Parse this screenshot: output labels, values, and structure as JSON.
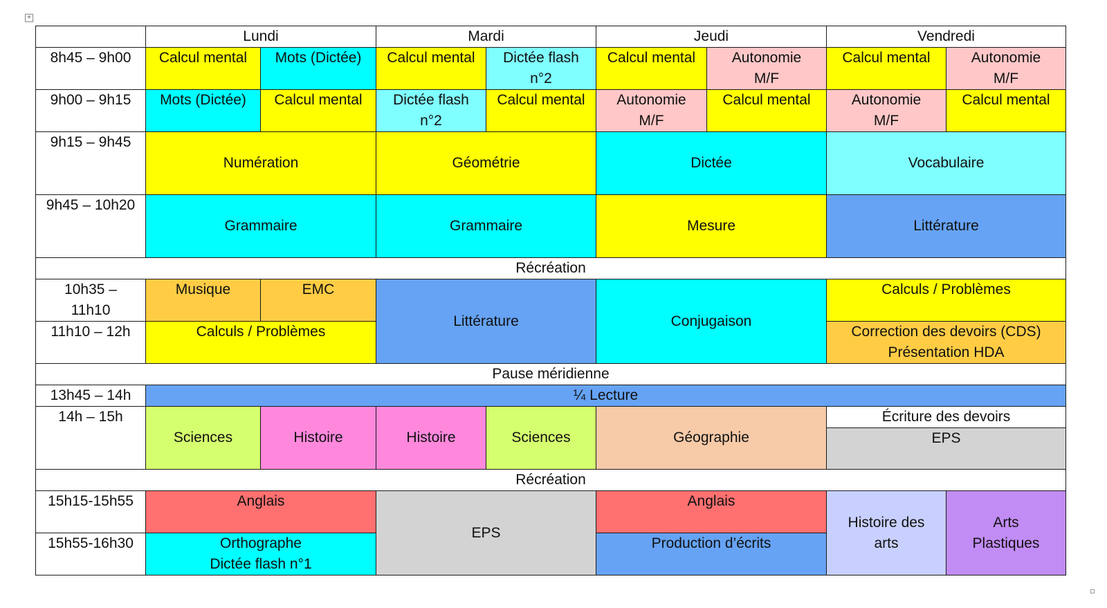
{
  "days": [
    "Lundi",
    "Mardi",
    "Jeudi",
    "Vendredi"
  ],
  "times": {
    "t1": "8h45 – 9h00",
    "t2": "9h00 – 9h15",
    "t3": "9h15 – 9h45",
    "t4": "9h45 – 10h20",
    "t5": "10h35 –\n11h10",
    "t6": "11h10 – 12h",
    "t7": "13h45 – 14h",
    "t8": "14h – 15h",
    "t9": "15h15-15h55",
    "t10": "15h55-16h30"
  },
  "breaks": {
    "recreation1": "Récréation",
    "lunch": "Pause méridienne",
    "recreation2": "Récréation"
  },
  "subjects": {
    "calcul_mental": "Calcul mental",
    "mots_dictee": "Mots (Dictée)",
    "dictee_flash_2": "Dictée flash\nn°2",
    "autonomie": "Autonomie\nM/F",
    "numeration": "Numération",
    "geometrie": "Géométrie",
    "dictee": "Dictée",
    "vocabulaire": "Vocabulaire",
    "grammaire": "Grammaire",
    "mesure": "Mesure",
    "litterature": "Littérature",
    "musique": "Musique",
    "emc": "EMC",
    "conjugaison": "Conjugaison",
    "calculs_problemes": "Calculs / Problèmes",
    "correction_devoirs": "Correction des devoirs (CDS)\nPrésentation HDA",
    "lecture": "¼ Lecture",
    "sciences": "Sciences",
    "histoire": "Histoire",
    "geographie": "Géographie",
    "ecriture_devoirs": "Écriture des devoirs",
    "eps": "EPS",
    "anglais": "Anglais",
    "orthographe": "Orthographe\nDictée flash n°1",
    "production_ecrits": "Production d’écrits",
    "histoire_arts": "Histoire des\narts",
    "arts_plastiques": "Arts\nPlastiques"
  },
  "colors": {
    "yellow": "#ffff00",
    "cyan": "#00ffff",
    "light_cyan": "#7fffff",
    "pink": "#ffc7c7",
    "blue": "#66a3f5",
    "orange": "#ffcc44",
    "lime": "#d5ff6e",
    "magenta": "#ff88dd",
    "peach": "#f7caa8",
    "grey": "#d3d3d3",
    "red": "#ff7070",
    "lavender": "#c8d0ff",
    "violet": "#c28cf5"
  }
}
